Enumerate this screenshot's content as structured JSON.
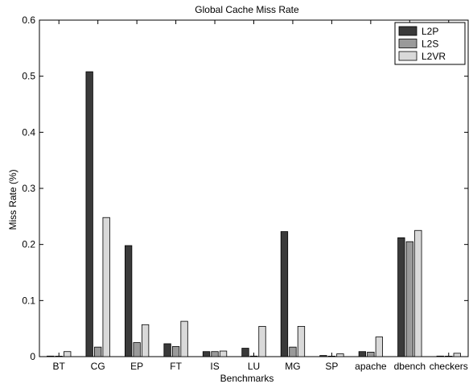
{
  "chart_data": {
    "type": "bar",
    "title": "Global Cache Miss Rate",
    "xlabel": "Benchmarks",
    "ylabel": "Miss Rate (%)",
    "ylim": [
      0,
      0.6
    ],
    "yticks": [
      "0",
      "0.1",
      "0.2",
      "0.3",
      "0.4",
      "0.5",
      "0.6"
    ],
    "categories": [
      "BT",
      "CG",
      "EP",
      "FT",
      "IS",
      "LU",
      "MG",
      "SP",
      "apache",
      "dbench",
      "checkers"
    ],
    "series": [
      {
        "name": "L2P",
        "color": "#3a3a3a",
        "values": [
          0.001,
          0.508,
          0.198,
          0.023,
          0.009,
          0.015,
          0.223,
          0.002,
          0.009,
          0.212,
          0.001
        ]
      },
      {
        "name": "L2S",
        "color": "#9a9a9a",
        "values": [
          0.0005,
          0.017,
          0.025,
          0.018,
          0.009,
          0.001,
          0.017,
          0.0005,
          0.008,
          0.205,
          0.0005
        ]
      },
      {
        "name": "L2VR",
        "color": "#d9d9d9",
        "values": [
          0.009,
          0.248,
          0.057,
          0.063,
          0.01,
          0.054,
          0.054,
          0.005,
          0.035,
          0.225,
          0.006
        ]
      }
    ],
    "legend_position": "top-right",
    "grid": false
  }
}
